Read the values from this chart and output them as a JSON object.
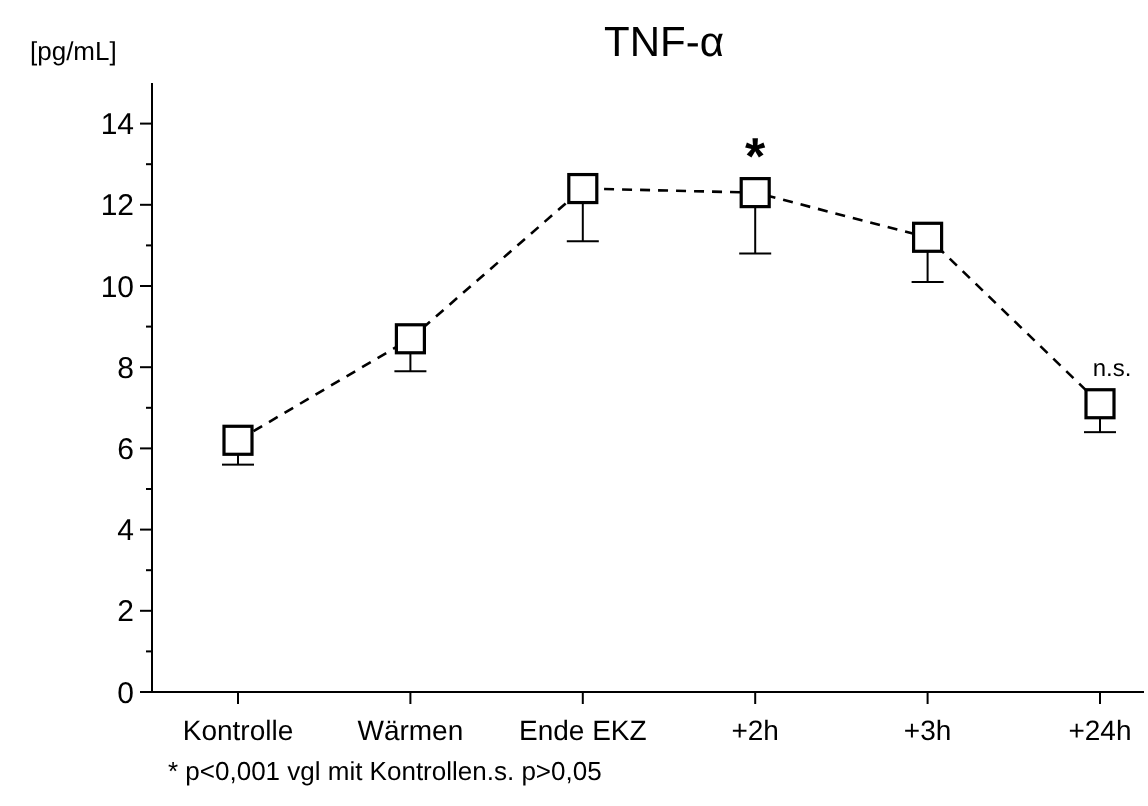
{
  "chart_data": {
    "type": "line",
    "title": "TNF-α",
    "ylabel": "[pg/mL]",
    "categories": [
      "Kontrolle",
      "Wärmen",
      "Ende EKZ",
      "+2h",
      "+3h",
      "+24h"
    ],
    "series": [
      {
        "color": "#000000",
        "values": [
          6.2,
          8.7,
          12.4,
          12.3,
          11.2,
          7.1
        ],
        "errors": [
          [
            5.6,
            6.2
          ],
          [
            7.9,
            8.7
          ],
          [
            11.1,
            12.4
          ],
          [
            10.8,
            12.3
          ],
          [
            10.1,
            11.2
          ],
          [
            6.4,
            7.1
          ]
        ]
      }
    ],
    "ylim": [
      0,
      15
    ],
    "yticks": [
      0,
      {
        "value": 1,
        "label": null
      },
      2,
      {
        "value": 3,
        "label": null
      },
      4,
      {
        "value": 5,
        "label": null
      },
      6,
      {
        "value": 7,
        "label": null
      },
      8,
      {
        "value": 9,
        "label": null
      },
      10,
      {
        "value": 11,
        "label": null
      },
      12,
      {
        "value": 13,
        "label": null
      },
      14
    ],
    "marker": "square",
    "line_style": "dashed",
    "grid": false,
    "annotations": [
      {
        "text": "*",
        "x": "+2h",
        "y": 12.3
      },
      {
        "text": "n.s.",
        "x": "+24h",
        "y": 7.1
      },
      "* p<0,001 vgl mit Kontrolle",
      "n.s. p>0,05"
    ]
  }
}
